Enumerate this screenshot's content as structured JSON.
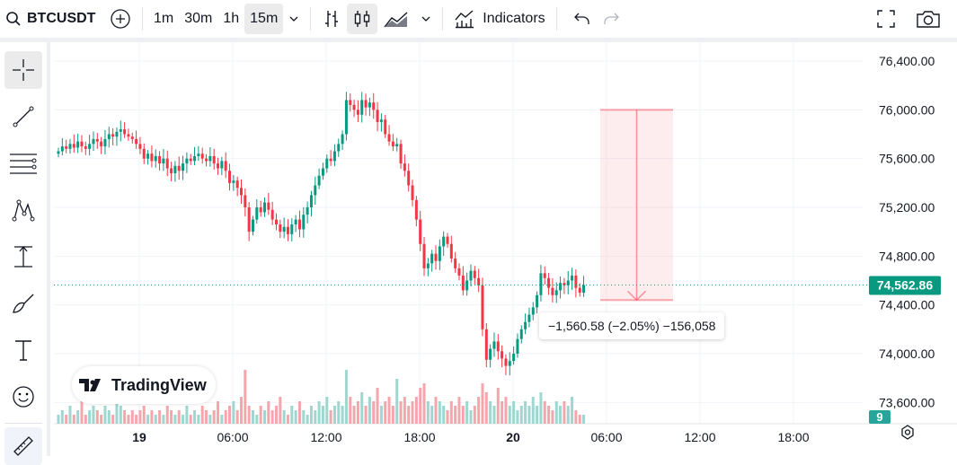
{
  "toolbar": {
    "symbol": "BTCUSDT",
    "intervals": [
      "1m",
      "30m",
      "1h",
      "15m"
    ],
    "active_interval": "15m",
    "indicators_label": "Indicators"
  },
  "watermark": "TradingView",
  "measure_label": "−1,560.58 (−2.05%) −156,058",
  "colors": {
    "up": "#089981",
    "down": "#f23645",
    "up_vol": "#9fd6cf",
    "down_vol": "#f5a6ad",
    "measure": "#f7525f"
  },
  "chart_data": {
    "type": "candlestick",
    "price_ticks": [
      "76,400.00",
      "76,000.00",
      "75,600.00",
      "75,200.00",
      "74,800.00",
      "74,400.00",
      "74,000.00",
      "73,600.00"
    ],
    "time_ticks": [
      {
        "label": "19",
        "bold": true
      },
      {
        "label": "06:00"
      },
      {
        "label": "12:00"
      },
      {
        "label": "18:00"
      },
      {
        "label": "20",
        "bold": true
      },
      {
        "label": "06:00"
      },
      {
        "label": "12:00"
      },
      {
        "label": "18:00"
      }
    ],
    "last_price": "74,562.86",
    "volume_badge": "9",
    "measure": {
      "from": 76000,
      "to": 74439.42
    },
    "closes": [
      75660,
      75700,
      75680,
      75720,
      75690,
      75740,
      75700,
      75680,
      75720,
      75760,
      75740,
      75700,
      75760,
      75800,
      75780,
      75820,
      75840,
      75800,
      75780,
      75760,
      75720,
      75680,
      75600,
      75640,
      75580,
      75620,
      75560,
      75600,
      75520,
      75480,
      75540,
      75500,
      75560,
      75600,
      75580,
      75620,
      75640,
      75600,
      75580,
      75620,
      75560,
      75520,
      75580,
      75500,
      75400,
      75420,
      75360,
      75300,
      75200,
      75000,
      75100,
      75200,
      75160,
      75240,
      75180,
      75100,
      75060,
      75000,
      75040,
      74980,
      75060,
      75100,
      75020,
      75140,
      75200,
      75300,
      75380,
      75460,
      75520,
      75600,
      75580,
      75660,
      75720,
      75800,
      76080,
      76040,
      76000,
      75960,
      76080,
      76020,
      76060,
      76000,
      75900,
      75920,
      75800,
      75740,
      75700,
      75720,
      75560,
      75500,
      75380,
      75260,
      75100,
      74900,
      74700,
      74740,
      74820,
      74760,
      74880,
      74960,
      74900,
      74780,
      74700,
      74640,
      74520,
      74600,
      74680,
      74620,
      74560,
      74200,
      73950,
      74040,
      74100,
      74020,
      73960,
      73900,
      73940,
      74000,
      74120,
      74200,
      74260,
      74320,
      74380,
      74480,
      74660,
      74620,
      74540,
      74480,
      74520,
      74580,
      74560,
      74600,
      74640,
      74540,
      74500,
      74562.86
    ],
    "volumes": [
      2,
      3,
      2,
      4,
      2,
      3,
      5,
      2,
      3,
      4,
      3,
      2,
      4,
      3,
      2,
      5,
      4,
      3,
      2,
      3,
      2,
      3,
      4,
      2,
      3,
      2,
      3,
      2,
      4,
      3,
      2,
      3,
      2,
      4,
      2,
      3,
      2,
      4,
      3,
      2,
      3,
      5,
      2,
      3,
      4,
      5,
      3,
      6,
      12,
      4,
      3,
      2,
      4,
      3,
      5,
      3,
      4,
      6,
      3,
      2,
      4,
      3,
      5,
      3,
      2,
      4,
      3,
      5,
      4,
      6,
      3,
      4,
      5,
      4,
      12,
      6,
      4,
      5,
      7,
      4,
      6,
      5,
      8,
      4,
      5,
      6,
      4,
      10,
      5,
      6,
      4,
      5,
      6,
      8,
      9,
      5,
      4,
      6,
      5,
      4,
      3,
      5,
      4,
      6,
      4,
      5,
      3,
      4,
      6,
      9,
      7,
      5,
      4,
      8,
      5,
      6,
      4,
      5,
      3,
      4,
      5,
      4,
      6,
      4,
      7,
      5,
      4,
      3,
      5,
      4,
      5,
      4,
      6,
      3,
      2,
      2
    ]
  }
}
